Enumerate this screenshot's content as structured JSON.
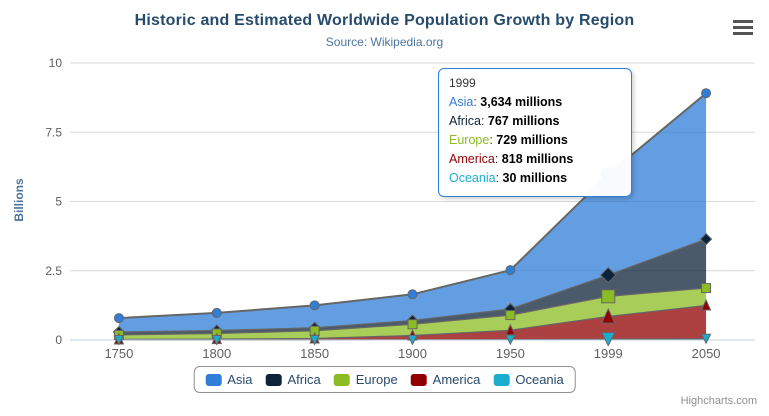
{
  "chart_data": {
    "type": "area",
    "stacking": "normal",
    "title": "Historic and Estimated Worldwide Population Growth by Region",
    "subtitle": "Source: Wikipedia.org",
    "ylabel": "Billions",
    "unit": "millions",
    "categories": [
      "1750",
      "1800",
      "1850",
      "1900",
      "1950",
      "1999",
      "2050"
    ],
    "ylim": [
      0,
      10
    ],
    "yticks": [
      "0",
      "2.5",
      "5",
      "7.5",
      "10"
    ],
    "ytick_values": [
      0,
      2.5,
      5,
      7.5,
      10
    ],
    "grid": true,
    "legend_position": "bottom-center",
    "series": [
      {
        "name": "Asia",
        "color": "#2f7ed8",
        "marker": "circle",
        "values": [
          502,
          635,
          809,
          947,
          1402,
          3634,
          5268
        ]
      },
      {
        "name": "Africa",
        "color": "#0d233a",
        "marker": "diamond",
        "values": [
          106,
          107,
          111,
          133,
          221,
          767,
          1766
        ]
      },
      {
        "name": "Europe",
        "color": "#8bbc21",
        "marker": "square",
        "values": [
          163,
          203,
          276,
          408,
          547,
          729,
          628
        ]
      },
      {
        "name": "America",
        "color": "#910000",
        "marker": "triangle",
        "values": [
          18,
          31,
          54,
          156,
          339,
          818,
          1201
        ]
      },
      {
        "name": "Oceania",
        "color": "#1aadce",
        "marker": "triangle-down",
        "values": [
          2,
          2,
          2,
          6,
          13,
          30,
          46
        ]
      }
    ],
    "tooltip": {
      "header": "1999",
      "hover_category_index": 5,
      "rows": [
        {
          "name": "Asia",
          "value": "3,634 millions"
        },
        {
          "name": "Africa",
          "value": "767 millions"
        },
        {
          "name": "Europe",
          "value": "729 millions"
        },
        {
          "name": "America",
          "value": "818 millions"
        },
        {
          "name": "Oceania",
          "value": "30 millions"
        }
      ]
    }
  },
  "colors": {
    "title": "#274b6d",
    "subtitle": "#4d759e",
    "axis_labels": "#606060",
    "gridline": "#d8d8d8",
    "axis_line": "#c0d0e0",
    "band_line": "#666666",
    "tooltip_border": "#2f7ed8",
    "legend_border": "#909090",
    "legend_text": "#274b6d",
    "credits": "#909090"
  },
  "credits": {
    "label": "Highcharts.com"
  }
}
